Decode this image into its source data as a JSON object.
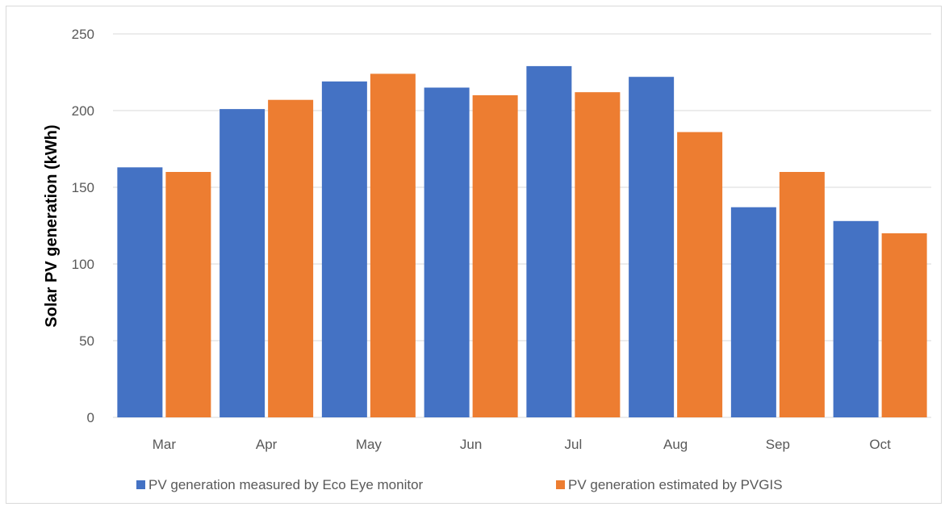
{
  "chart_data": {
    "type": "bar",
    "title": "",
    "xlabel": "",
    "ylabel": "Solar PV generation (kWh)",
    "ylim": [
      0,
      250
    ],
    "yticks": [
      0,
      50,
      100,
      150,
      200,
      250
    ],
    "grid": true,
    "legend_position": "bottom",
    "categories": [
      "Mar",
      "Apr",
      "May",
      "Jun",
      "Jul",
      "Aug",
      "Sep",
      "Oct"
    ],
    "series": [
      {
        "name": "PV generation measured by Eco Eye monitor",
        "color": "#4472C4",
        "values": [
          163,
          201,
          219,
          215,
          229,
          222,
          137,
          128
        ]
      },
      {
        "name": "PV generation estimated by PVGIS",
        "color": "#ED7D31",
        "values": [
          160,
          207,
          224,
          210,
          212,
          186,
          160,
          120
        ]
      }
    ]
  }
}
